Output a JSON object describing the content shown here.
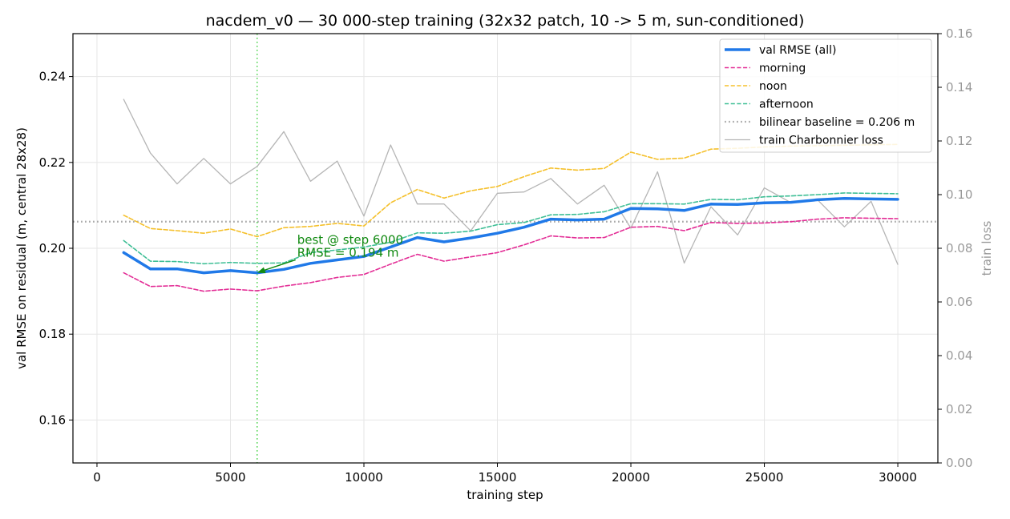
{
  "chart_data": {
    "type": "line",
    "title": "nacdem_v0 — 30 000-step training (32x32 patch, 10 -> 5 m, sun-conditioned)",
    "xlabel": "training step",
    "ylabel": "val RMSE on residual (m, central 28x28)",
    "y2label": "train loss",
    "xlim": [
      -900,
      31500
    ],
    "ylim": [
      0.15,
      0.25
    ],
    "y2lim": [
      0.0,
      0.16
    ],
    "x_ticks": [
      0,
      5000,
      10000,
      15000,
      20000,
      25000,
      30000
    ],
    "y_ticks": [
      0.16,
      0.18,
      0.2,
      0.22,
      0.24
    ],
    "y2_ticks": [
      0.0,
      0.02,
      0.04,
      0.06,
      0.08,
      0.1,
      0.12,
      0.14,
      0.16
    ],
    "y_tick_labels": [
      "0.16",
      "0.18",
      "0.20",
      "0.22",
      "0.24"
    ],
    "y2_tick_labels": [
      "0.00",
      "0.02",
      "0.04",
      "0.06",
      "0.08",
      "0.10",
      "0.12",
      "0.14",
      "0.16"
    ],
    "grid": true,
    "legend_position": "top-right",
    "x": [
      1000,
      2000,
      3000,
      4000,
      5000,
      6000,
      7000,
      8000,
      9000,
      10000,
      11000,
      12000,
      13000,
      14000,
      15000,
      16000,
      17000,
      18000,
      19000,
      20000,
      21000,
      22000,
      23000,
      24000,
      25000,
      26000,
      27000,
      28000,
      29000,
      30000
    ],
    "series": [
      {
        "name": "val RMSE (all)",
        "color": "#2079e8",
        "style": "solid",
        "width": 3.5,
        "axis": "left",
        "values": [
          0.199,
          0.1952,
          0.1952,
          0.1943,
          0.1948,
          0.1943,
          0.1951,
          0.1965,
          0.1973,
          0.1981,
          0.2003,
          0.2025,
          0.2015,
          0.2024,
          0.2035,
          0.2049,
          0.2068,
          0.2066,
          0.2068,
          0.2093,
          0.2092,
          0.2088,
          0.2103,
          0.2102,
          0.2106,
          0.2107,
          0.2113,
          0.2116,
          0.2115,
          0.2114
        ]
      },
      {
        "name": "morning",
        "color": "#e32e96",
        "style": "dashed",
        "width": 1.6,
        "axis": "left",
        "values": [
          0.1943,
          0.1911,
          0.1913,
          0.19,
          0.1905,
          0.1901,
          0.1912,
          0.192,
          0.1932,
          0.1939,
          0.1963,
          0.1986,
          0.197,
          0.198,
          0.199,
          0.2008,
          0.2029,
          0.2024,
          0.2025,
          0.2049,
          0.2051,
          0.2041,
          0.206,
          0.2058,
          0.2059,
          0.2062,
          0.2068,
          0.2071,
          0.207,
          0.2069
        ]
      },
      {
        "name": "noon",
        "color": "#f5c02b",
        "style": "dashed",
        "width": 1.6,
        "axis": "left",
        "values": [
          0.2077,
          0.2046,
          0.2041,
          0.2035,
          0.2045,
          0.2027,
          0.2048,
          0.2051,
          0.2058,
          0.2052,
          0.2106,
          0.2137,
          0.2117,
          0.2134,
          0.2144,
          0.2167,
          0.2187,
          0.2182,
          0.2186,
          0.2224,
          0.2207,
          0.221,
          0.2231,
          0.2233,
          0.2236,
          0.2238,
          0.2239,
          0.224,
          0.2241,
          0.2242
        ]
      },
      {
        "name": "afternoon",
        "color": "#3fbf96",
        "style": "dashed",
        "width": 1.6,
        "axis": "left",
        "values": [
          0.2018,
          0.197,
          0.1969,
          0.1964,
          0.1967,
          0.1965,
          0.1966,
          0.199,
          0.1996,
          0.2003,
          0.2014,
          0.2036,
          0.2035,
          0.204,
          0.2055,
          0.206,
          0.2078,
          0.2079,
          0.2085,
          0.2104,
          0.2104,
          0.2103,
          0.2114,
          0.2113,
          0.212,
          0.2122,
          0.2125,
          0.2129,
          0.2128,
          0.2127
        ]
      },
      {
        "name": "train Charbonnier loss",
        "color": "#b5b5b5",
        "style": "solid",
        "width": 1.3,
        "axis": "right",
        "values": [
          0.1355,
          0.1155,
          0.104,
          0.1135,
          0.104,
          0.1105,
          0.1235,
          0.105,
          0.1125,
          0.092,
          0.1185,
          0.0965,
          0.0965,
          0.0865,
          0.1005,
          0.101,
          0.106,
          0.0965,
          0.1035,
          0.0875,
          0.1085,
          0.0745,
          0.0955,
          0.085,
          0.1025,
          0.097,
          0.098,
          0.088,
          0.0975,
          0.074
        ]
      }
    ],
    "reference_lines": [
      {
        "name": "bilinear baseline = 0.206 m",
        "orientation": "horizontal",
        "value": 0.2062,
        "color": "#aaaaaa",
        "style": "dotted"
      },
      {
        "name": "",
        "orientation": "vertical",
        "value": 6000,
        "color": "#4fd44f",
        "style": "dotted"
      }
    ],
    "annotations": [
      {
        "lines": [
          "best @ step 6000",
          "RMSE = 0.194 m"
        ],
        "point_x": 6000,
        "point_y": 0.1943,
        "text_x": 7500,
        "text_y": 0.1988,
        "color": "#118a11"
      }
    ],
    "legend": [
      {
        "label": "val RMSE (all)",
        "color": "#2079e8",
        "style": "solid",
        "width": 3.5
      },
      {
        "label": "morning",
        "color": "#e32e96",
        "style": "dashed",
        "width": 1.6
      },
      {
        "label": "noon",
        "color": "#f5c02b",
        "style": "dashed",
        "width": 1.6
      },
      {
        "label": "afternoon",
        "color": "#3fbf96",
        "style": "dashed",
        "width": 1.6
      },
      {
        "label": "bilinear baseline = 0.206 m",
        "color": "#aaaaaa",
        "style": "dotted",
        "width": 2.2
      },
      {
        "label": "train Charbonnier loss",
        "color": "#b5b5b5",
        "style": "solid",
        "width": 1.3
      }
    ]
  }
}
